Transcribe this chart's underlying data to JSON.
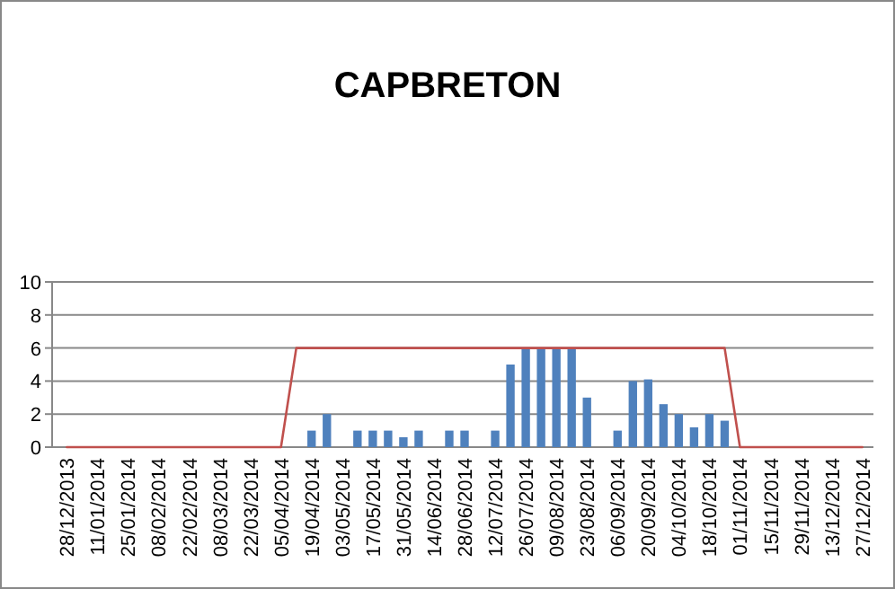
{
  "chart_data": {
    "type": "bar",
    "title": "CAPBRETON",
    "categories": [
      "28/12/2013",
      null,
      "11/01/2014",
      null,
      "25/01/2014",
      null,
      "08/02/2014",
      null,
      "22/02/2014",
      null,
      "08/03/2014",
      null,
      "22/03/2014",
      null,
      "05/04/2014",
      null,
      "19/04/2014",
      null,
      "03/05/2014",
      null,
      "17/05/2014",
      null,
      "31/05/2014",
      null,
      "14/06/2014",
      null,
      "28/06/2014",
      null,
      "12/07/2014",
      null,
      "26/07/2014",
      null,
      "09/08/2014",
      null,
      "23/08/2014",
      null,
      "06/09/2014",
      null,
      "20/09/2014",
      null,
      "04/10/2014",
      null,
      "18/10/2014",
      null,
      "01/11/2014",
      null,
      "15/11/2014",
      null,
      "29/11/2014",
      null,
      "13/12/2014",
      null,
      "27/12/2014"
    ],
    "series": [
      {
        "color": "#4f81bd",
        "values": [
          0,
          0,
          0,
          0,
          0,
          0,
          0,
          0,
          0,
          0,
          0,
          0,
          0,
          0,
          0,
          0,
          1,
          2,
          0,
          1,
          1,
          1,
          0.6,
          1,
          0,
          1,
          1,
          0,
          1,
          5,
          6,
          6,
          6,
          6,
          3,
          0,
          1,
          4,
          4.1,
          2.6,
          2,
          1.2,
          2,
          1.6,
          0,
          0,
          0,
          0,
          0,
          0,
          0,
          0,
          0
        ]
      },
      {
        "type": "line",
        "color": "#c0504d",
        "values": [
          0,
          0,
          0,
          0,
          0,
          0,
          0,
          0,
          0,
          0,
          0,
          0,
          0,
          0,
          0,
          6,
          6,
          6,
          6,
          6,
          6,
          6,
          6,
          6,
          6,
          6,
          6,
          6,
          6,
          6,
          6,
          6,
          6,
          6,
          6,
          6,
          6,
          6,
          6,
          6,
          6,
          6,
          6,
          6,
          0,
          0,
          0,
          0,
          0,
          0,
          0,
          0,
          0
        ]
      }
    ],
    "ylim": [
      0,
      10
    ],
    "yticks": [
      0,
      2,
      4,
      6,
      8,
      10
    ],
    "grid": "y"
  }
}
